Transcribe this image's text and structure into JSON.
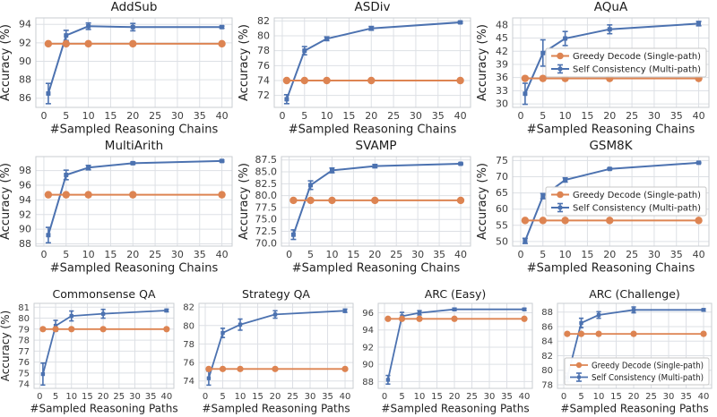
{
  "figure": {
    "name": "Self-consistency vs greedy decoding accuracy across benchmarks",
    "colors": {
      "greedy": "#dd8452",
      "self_consistency": "#4c72b0",
      "grid": "#dde0e5",
      "spine": "#c9cdd2",
      "tick_text": "#3d3d3d",
      "label_text": "#222222",
      "legend_border": "#c7c7c7"
    },
    "legend_items": [
      "Greedy Decode (Single-path)",
      "Self Consistency (Multi-path)"
    ]
  },
  "chart_data": [
    {
      "type": "line",
      "title": "AddSub",
      "xlabel": "#Sampled Reasoning Chains",
      "ylabel": "Accuracy (%)",
      "x": [
        1,
        5,
        10,
        20,
        40
      ],
      "xticks": [
        0,
        5,
        10,
        15,
        20,
        25,
        30,
        35,
        40
      ],
      "xlim": [
        -1.8,
        42.3
      ],
      "series": [
        {
          "name": "Greedy Decode (Single-path)",
          "values": [
            91.9,
            91.9,
            91.9,
            91.9,
            91.9
          ]
        },
        {
          "name": "Self Consistency (Multi-path)",
          "values": [
            86.5,
            92.8,
            93.8,
            93.7,
            93.7
          ],
          "errors": [
            1.1,
            0.55,
            0.35,
            0.4,
            0.12
          ]
        }
      ],
      "yticks": [
        86,
        88,
        90,
        92,
        94
      ],
      "ylim": [
        85.0,
        94.7
      ],
      "legend": "none"
    },
    {
      "type": "line",
      "title": "ASDiv",
      "xlabel": "#Sampled Reasoning Chains",
      "ylabel": "Accuracy (%)",
      "x": [
        1,
        5,
        10,
        20,
        40
      ],
      "xticks": [
        0,
        5,
        10,
        15,
        20,
        25,
        30,
        35,
        40
      ],
      "xlim": [
        -1.8,
        42.3
      ],
      "series": [
        {
          "name": "Greedy Decode (Single-path)",
          "values": [
            74.0,
            74.0,
            74.0,
            74.0,
            74.0
          ]
        },
        {
          "name": "Self Consistency (Multi-path)",
          "values": [
            71.5,
            78.0,
            79.6,
            81.0,
            81.8
          ],
          "errors": [
            0.6,
            0.55,
            0.25,
            0.25,
            0.12
          ]
        }
      ],
      "yticks": [
        72,
        74,
        76,
        78,
        80,
        82
      ],
      "ylim": [
        70.4,
        82.4
      ],
      "legend": "none"
    },
    {
      "type": "line",
      "title": "AQuA",
      "xlabel": "#Sampled Reasoning Chains",
      "ylabel": "Accuracy (%)",
      "x": [
        1,
        5,
        10,
        20,
        40
      ],
      "xticks": [
        0,
        5,
        10,
        15,
        20,
        25,
        30,
        35,
        40
      ],
      "xlim": [
        -1.8,
        42.3
      ],
      "series": [
        {
          "name": "Greedy Decode (Single-path)",
          "values": [
            35.8,
            35.8,
            35.8,
            35.8,
            35.8
          ]
        },
        {
          "name": "Self Consistency (Multi-path)",
          "values": [
            32.3,
            41.6,
            44.9,
            47.0,
            48.3
          ],
          "errors": [
            2.4,
            3.0,
            1.6,
            1.0,
            0.5
          ]
        }
      ],
      "yticks": [
        30,
        33,
        36,
        39,
        42,
        45,
        48
      ],
      "ylim": [
        29.2,
        49.6
      ],
      "legend": "center-right"
    },
    {
      "type": "line",
      "title": "MultiArith",
      "xlabel": "#Sampled Reasoning Chains",
      "ylabel": "Accuracy (%)",
      "x": [
        1,
        5,
        10,
        20,
        40
      ],
      "xticks": [
        0,
        5,
        10,
        15,
        20,
        25,
        30,
        35,
        40
      ],
      "xlim": [
        -1.8,
        42.3
      ],
      "series": [
        {
          "name": "Greedy Decode (Single-path)",
          "values": [
            94.7,
            94.7,
            94.7,
            94.7,
            94.7
          ]
        },
        {
          "name": "Self Consistency (Multi-path)",
          "values": [
            89.2,
            97.4,
            98.4,
            99.0,
            99.3
          ],
          "errors": [
            1.05,
            0.65,
            0.3,
            0.15,
            0.12
          ]
        }
      ],
      "yticks": [
        88,
        90,
        92,
        94,
        96,
        98
      ],
      "ylim": [
        87.7,
        99.9
      ],
      "legend": "none"
    },
    {
      "type": "line",
      "title": "SVAMP",
      "xlabel": "#Sampled Reasoning Chains",
      "ylabel": "Accuracy (%)",
      "x": [
        1,
        5,
        10,
        20,
        40
      ],
      "xticks": [
        0,
        5,
        10,
        15,
        20,
        25,
        30,
        35,
        40
      ],
      "xlim": [
        -1.8,
        42.3
      ],
      "series": [
        {
          "name": "Greedy Decode (Single-path)",
          "values": [
            79.0,
            79.0,
            79.0,
            79.0,
            79.0
          ]
        },
        {
          "name": "Self Consistency (Multi-path)",
          "values": [
            71.8,
            82.2,
            85.3,
            86.2,
            86.7
          ],
          "errors": [
            1.0,
            0.9,
            0.5,
            0.35,
            0.15
          ]
        }
      ],
      "yticks": [
        70.0,
        72.5,
        75.0,
        77.5,
        80.0,
        82.5,
        85.0,
        87.5
      ],
      "ytick_decimals": 1,
      "ylim": [
        69.4,
        88.2
      ],
      "legend": "none"
    },
    {
      "type": "line",
      "title": "GSM8K",
      "xlabel": "#Sampled Reasoning Chains",
      "ylabel": "Accuracy (%)",
      "x": [
        1,
        5,
        10,
        20,
        40
      ],
      "xticks": [
        0,
        5,
        10,
        15,
        20,
        25,
        30,
        35,
        40
      ],
      "xlim": [
        -1.8,
        42.3
      ],
      "series": [
        {
          "name": "Greedy Decode (Single-path)",
          "values": [
            56.5,
            56.5,
            56.5,
            56.5,
            56.5
          ]
        },
        {
          "name": "Self Consistency (Multi-path)",
          "values": [
            50.2,
            64.0,
            69.0,
            72.4,
            74.3
          ],
          "errors": [
            0.8,
            0.8,
            0.65,
            0.25,
            0.2
          ]
        }
      ],
      "yticks": [
        50,
        55,
        60,
        65,
        70,
        75
      ],
      "ylim": [
        48.6,
        76.2
      ],
      "legend": "center-right"
    },
    {
      "type": "line",
      "title": "Commonsense QA",
      "xlabel": "#Sampled Reasoning Paths",
      "ylabel": "Accuracy (%)",
      "x": [
        1,
        5,
        10,
        20,
        40
      ],
      "xticks": [
        0,
        5,
        10,
        15,
        20,
        25,
        30,
        35,
        40
      ],
      "xlim": [
        -1.8,
        42.3
      ],
      "series": [
        {
          "name": "Greedy Decode (Single-path)",
          "values": [
            79.0,
            79.0,
            79.0,
            79.0,
            79.0
          ]
        },
        {
          "name": "Self Consistency (Multi-path)",
          "values": [
            74.9,
            79.3,
            80.2,
            80.4,
            80.7
          ],
          "errors": [
            1.0,
            0.5,
            0.45,
            0.4,
            0.12
          ]
        }
      ],
      "yticks": [
        74,
        75,
        76,
        77,
        78,
        79,
        80,
        81
      ],
      "ylim": [
        73.6,
        81.35
      ],
      "legend": "none"
    },
    {
      "type": "line",
      "title": "Strategy QA",
      "xlabel": "#Sampled Reasoning Paths",
      "ylabel": "",
      "x": [
        1,
        5,
        10,
        20,
        40
      ],
      "xticks": [
        0,
        5,
        10,
        15,
        20,
        25,
        30,
        35,
        40
      ],
      "xlim": [
        -1.8,
        42.3
      ],
      "series": [
        {
          "name": "Greedy Decode (Single-path)",
          "values": [
            75.3,
            75.3,
            75.3,
            75.3,
            75.3
          ]
        },
        {
          "name": "Self Consistency (Multi-path)",
          "values": [
            74.3,
            79.2,
            80.1,
            81.2,
            81.6
          ],
          "errors": [
            0.75,
            0.5,
            0.6,
            0.4,
            0.18
          ]
        }
      ],
      "yticks": [
        74,
        76,
        78,
        80,
        82
      ],
      "ylim": [
        73.2,
        82.4
      ],
      "legend": "none"
    },
    {
      "type": "line",
      "title": "ARC (Easy)",
      "xlabel": "#Sampled Reasoning Paths",
      "ylabel": "",
      "x": [
        1,
        5,
        10,
        20,
        40
      ],
      "xticks": [
        0,
        5,
        10,
        15,
        20,
        25,
        30,
        35,
        40
      ],
      "xlim": [
        -1.8,
        42.3
      ],
      "series": [
        {
          "name": "Greedy Decode (Single-path)",
          "values": [
            95.3,
            95.3,
            95.3,
            95.3,
            95.3
          ]
        },
        {
          "name": "Self Consistency (Multi-path)",
          "values": [
            88.2,
            95.6,
            96.0,
            96.4,
            96.4
          ],
          "errors": [
            0.5,
            0.45,
            0.25,
            0.15,
            0.12
          ]
        }
      ],
      "yticks": [
        88,
        90,
        92,
        94,
        96
      ],
      "ylim": [
        87.2,
        97.1
      ],
      "legend": "none"
    },
    {
      "type": "line",
      "title": "ARC (Challenge)",
      "xlabel": "#Sampled Reasoning Paths",
      "ylabel": "",
      "x": [
        1,
        5,
        10,
        20,
        40
      ],
      "xticks": [
        0,
        5,
        10,
        15,
        20,
        25,
        30,
        35,
        40
      ],
      "xlim": [
        -1.8,
        42.3
      ],
      "series": [
        {
          "name": "Greedy Decode (Single-path)",
          "values": [
            85.0,
            85.0,
            85.0,
            85.0,
            85.0
          ]
        },
        {
          "name": "Self Consistency (Multi-path)",
          "values": [
            79.0,
            86.5,
            87.6,
            88.3,
            88.3
          ],
          "errors": [
            0.6,
            0.65,
            0.45,
            0.4,
            0.15
          ]
        }
      ],
      "yticks": [
        78,
        80,
        82,
        84,
        86,
        88
      ],
      "ylim": [
        77.5,
        89.2
      ],
      "legend": "bottom-right"
    }
  ]
}
